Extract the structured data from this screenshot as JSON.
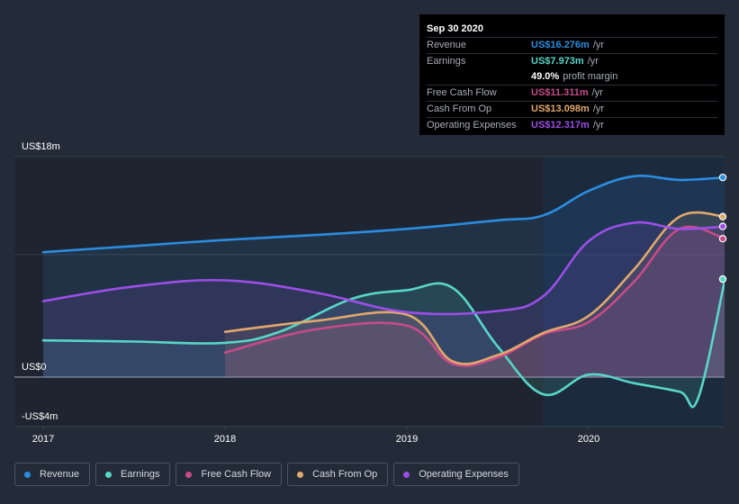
{
  "chart_data": {
    "type": "line",
    "x_labels": [
      "2017",
      "2018",
      "2019",
      "2020"
    ],
    "x_ticks": [
      2017,
      2018,
      2019,
      2020
    ],
    "xlim": [
      2016.85,
      2020.76
    ],
    "ylim": [
      -4,
      18
    ],
    "y_labels": [
      {
        "value": 18,
        "label": "US$18m"
      },
      {
        "value": 0,
        "label": "US$0"
      },
      {
        "value": -4,
        "label": "-US$4m"
      }
    ],
    "forecast_start": 2019.75,
    "series": [
      {
        "name": "Revenue",
        "color": "#2b8de0",
        "points": [
          [
            2017.0,
            10.2
          ],
          [
            2017.5,
            10.7
          ],
          [
            2018.0,
            11.2
          ],
          [
            2018.5,
            11.6
          ],
          [
            2019.0,
            12.1
          ],
          [
            2019.5,
            12.8
          ],
          [
            2019.75,
            13.2
          ],
          [
            2020.0,
            15.2
          ],
          [
            2020.25,
            16.4
          ],
          [
            2020.5,
            16.1
          ],
          [
            2020.75,
            16.3
          ]
        ]
      },
      {
        "name": "Earnings",
        "color": "#58d6c8",
        "points": [
          [
            2017.0,
            3.0
          ],
          [
            2017.5,
            2.9
          ],
          [
            2018.0,
            2.8
          ],
          [
            2018.3,
            3.7
          ],
          [
            2018.7,
            6.4
          ],
          [
            2019.0,
            7.1
          ],
          [
            2019.25,
            7.3
          ],
          [
            2019.5,
            2.5
          ],
          [
            2019.75,
            -1.4
          ],
          [
            2020.0,
            0.2
          ],
          [
            2020.25,
            -0.5
          ],
          [
            2020.5,
            -1.2
          ],
          [
            2020.6,
            -1.8
          ],
          [
            2020.75,
            8.0
          ]
        ]
      },
      {
        "name": "Free Cash Flow",
        "color": "#c84b88",
        "points": [
          [
            2018.0,
            2.0
          ],
          [
            2018.5,
            3.9
          ],
          [
            2019.0,
            4.2
          ],
          [
            2019.25,
            1.1
          ],
          [
            2019.5,
            1.6
          ],
          [
            2019.75,
            3.5
          ],
          [
            2020.0,
            4.5
          ],
          [
            2020.25,
            7.8
          ],
          [
            2020.5,
            12.1
          ],
          [
            2020.75,
            11.3
          ]
        ]
      },
      {
        "name": "Cash From Op",
        "color": "#e0a86c",
        "points": [
          [
            2018.0,
            3.7
          ],
          [
            2018.5,
            4.6
          ],
          [
            2019.0,
            5.1
          ],
          [
            2019.25,
            1.3
          ],
          [
            2019.5,
            1.8
          ],
          [
            2019.75,
            3.6
          ],
          [
            2020.0,
            5.0
          ],
          [
            2020.25,
            8.8
          ],
          [
            2020.5,
            13.1
          ],
          [
            2020.75,
            13.1
          ]
        ]
      },
      {
        "name": "Operating Expenses",
        "color": "#9b4fe6",
        "points": [
          [
            2017.0,
            6.2
          ],
          [
            2017.5,
            7.4
          ],
          [
            2018.0,
            7.9
          ],
          [
            2018.5,
            6.9
          ],
          [
            2019.0,
            5.3
          ],
          [
            2019.5,
            5.4
          ],
          [
            2019.75,
            6.6
          ],
          [
            2020.0,
            11.1
          ],
          [
            2020.25,
            12.6
          ],
          [
            2020.5,
            12.1
          ],
          [
            2020.75,
            12.3
          ]
        ]
      }
    ]
  },
  "tooltip": {
    "date": "Sep 30 2020",
    "rows": [
      {
        "label": "Revenue",
        "value": "US$16.276m",
        "unit": "/yr",
        "color": "#2b8de0"
      },
      {
        "label": "Earnings",
        "value": "US$7.973m",
        "unit": "/yr",
        "color": "#58d6c8"
      },
      {
        "label": "",
        "value": "49.0%",
        "unit": "profit margin",
        "color": "#ffffff"
      },
      {
        "label": "Free Cash Flow",
        "value": "US$11.311m",
        "unit": "/yr",
        "color": "#c84b88"
      },
      {
        "label": "Cash From Op",
        "value": "US$13.098m",
        "unit": "/yr",
        "color": "#e0a86c"
      },
      {
        "label": "Operating Expenses",
        "value": "US$12.317m",
        "unit": "/yr",
        "color": "#9b4fe6"
      }
    ]
  },
  "legend": [
    {
      "label": "Revenue",
      "color": "#2b8de0"
    },
    {
      "label": "Earnings",
      "color": "#58d6c8"
    },
    {
      "label": "Free Cash Flow",
      "color": "#c84b88"
    },
    {
      "label": "Cash From Op",
      "color": "#e0a86c"
    },
    {
      "label": "Operating Expenses",
      "color": "#9b4fe6"
    }
  ]
}
